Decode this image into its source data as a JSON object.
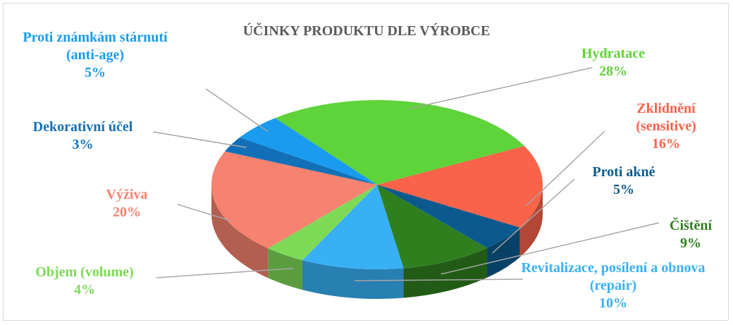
{
  "chart_data": {
    "type": "pie",
    "title": "ÚČINKY PRODUKTU DLE VÝROBCE",
    "categories": [
      "Hydratace",
      "Zklidnění (sensitive)",
      "Proti akné",
      "Čištění",
      "Revitalizace, posílení a obnova (repair)",
      "Objem (volume)",
      "Výživa",
      "Dekorativní účel",
      "Proti známkám stárnutí (anti-age)"
    ],
    "values": [
      28,
      16,
      5,
      9,
      10,
      4,
      20,
      3,
      5
    ],
    "value_labels": [
      "28%",
      "16%",
      "5%",
      "9%",
      "10%",
      "4%",
      "20%",
      "3%",
      "5%"
    ],
    "colors": [
      "#5fd33a",
      "#f8634a",
      "#0b5a8e",
      "#2f7f1f",
      "#38b0f6",
      "#7ed957",
      "#f7826f",
      "#1270b8",
      "#199bef"
    ]
  }
}
